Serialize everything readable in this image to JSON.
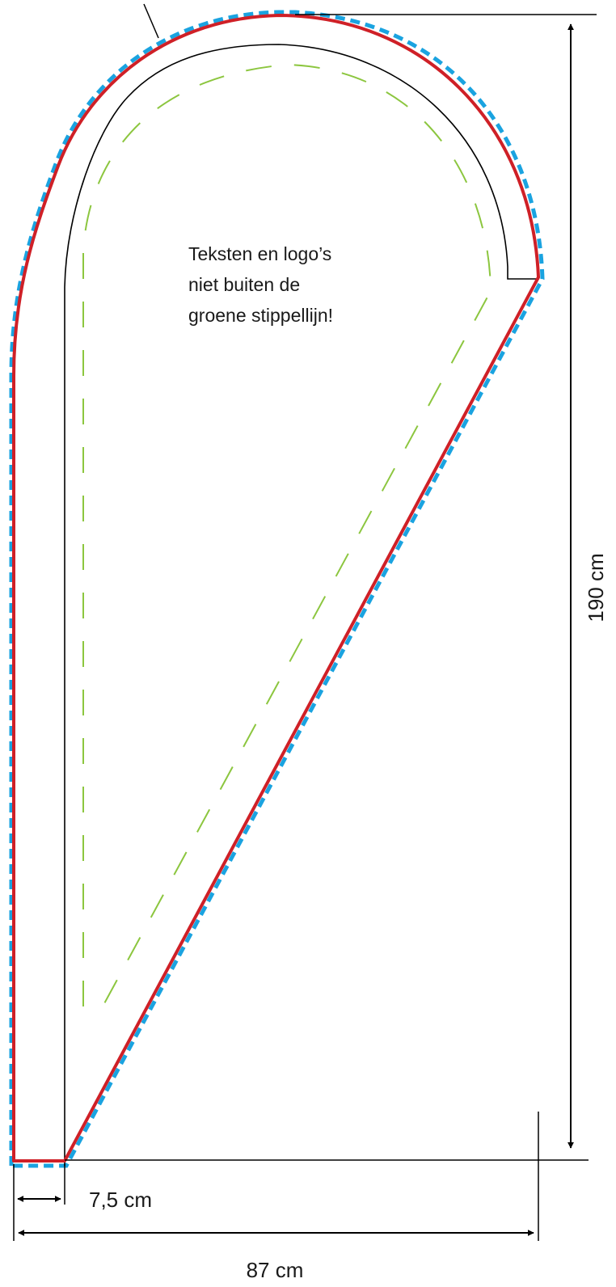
{
  "instruction": {
    "lines": [
      "Teksten en logo’s",
      "niet buiten de",
      "groene stippellijn!"
    ]
  },
  "dimensions": {
    "height_label": "190 cm",
    "width_label": "87 cm",
    "pole_sleeve_label": "7,5 cm"
  },
  "colors": {
    "cut_line": "#cf2027",
    "bleed_line": "#1aa3e0",
    "safe_zone_line": "#8cc63f",
    "sleeve_line": "#000000",
    "dimension_line": "#000000"
  }
}
